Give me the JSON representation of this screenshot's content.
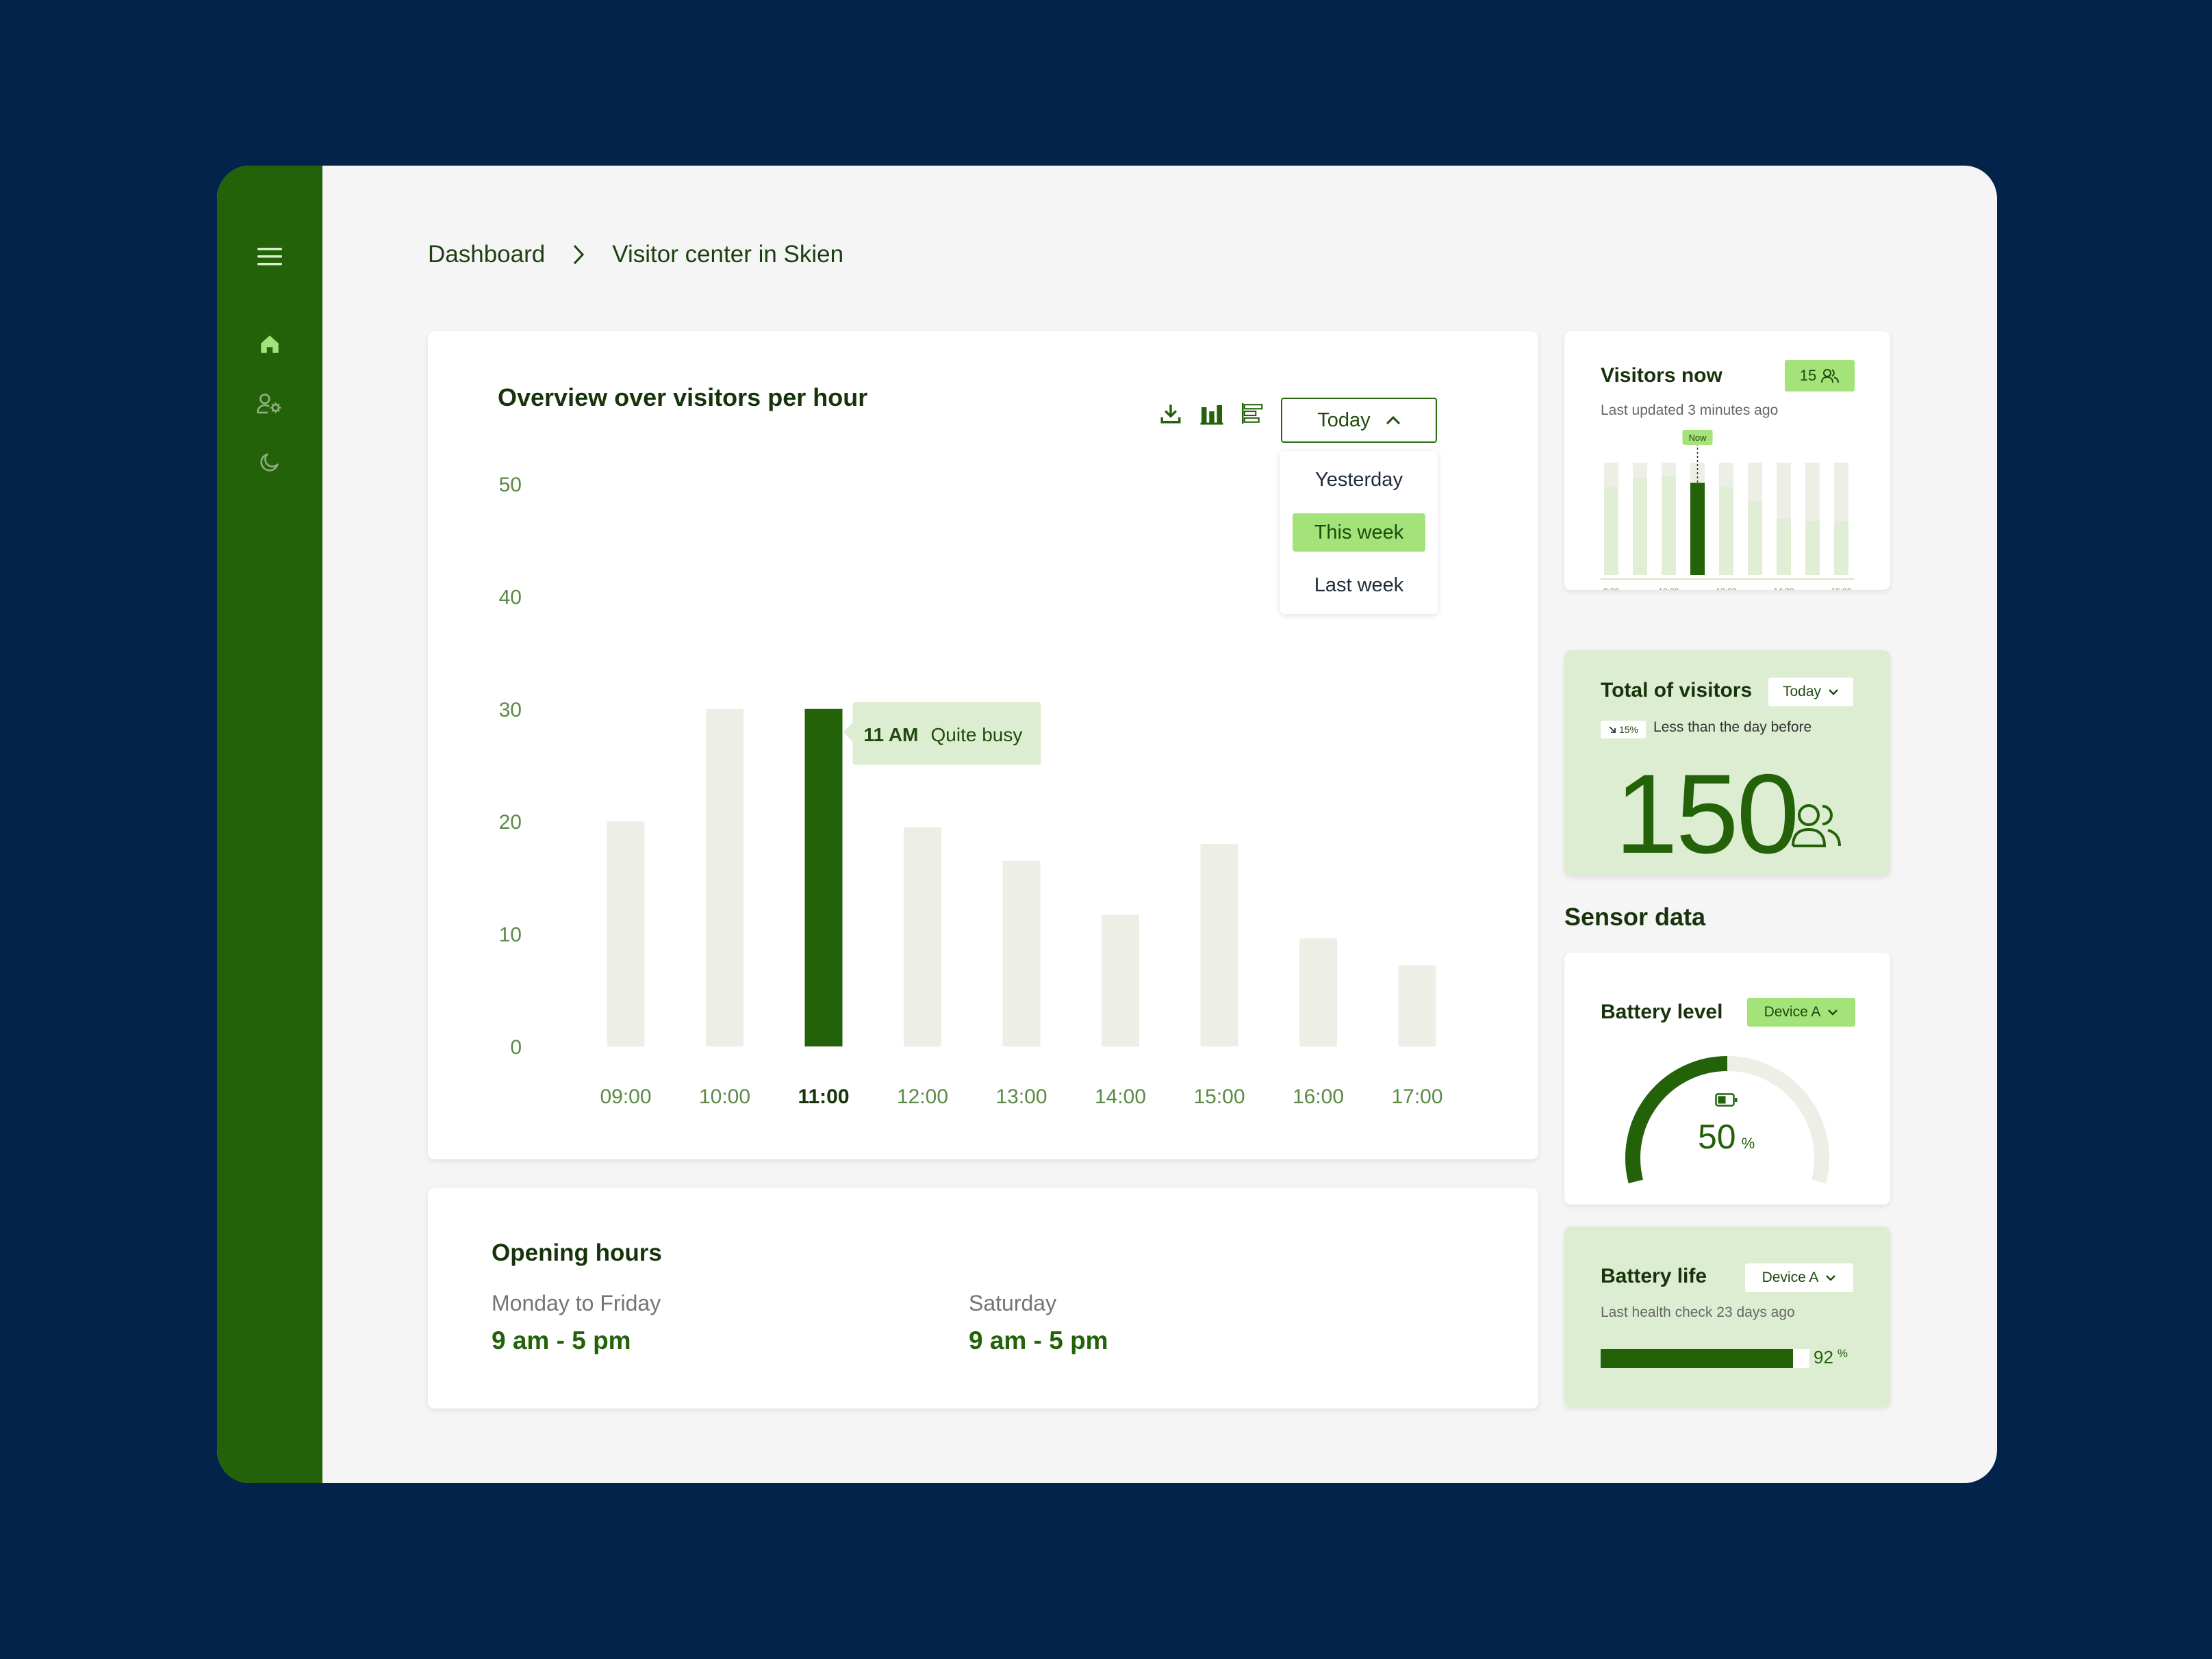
{
  "colors": {
    "accent": "#236209",
    "accent_light": "#a4e27a",
    "bar_muted": "#edefe7",
    "card_green": "#ddedd2",
    "background": "#03234a"
  },
  "sidebar": {
    "items": [
      {
        "icon": "menu-icon"
      },
      {
        "icon": "home-icon"
      },
      {
        "icon": "user-settings-icon"
      },
      {
        "icon": "moon-icon"
      }
    ]
  },
  "breadcrumb": {
    "root": "Dashboard",
    "current": "Visitor center in Skien"
  },
  "overview": {
    "title": "Overview over visitors per hour",
    "tools": [
      "download-icon",
      "bar-chart-icon",
      "horizontal-bar-icon"
    ],
    "range": {
      "selected": "Today",
      "options": [
        "Yesterday",
        "This week",
        "Last week"
      ],
      "highlighted": "This week"
    },
    "tooltip": {
      "time": "11 AM",
      "status": "Quite busy"
    }
  },
  "chart_data": {
    "type": "bar",
    "categories": [
      "09:00",
      "10:00",
      "11:00",
      "12:00",
      "13:00",
      "14:00",
      "15:00",
      "16:00",
      "17:00"
    ],
    "values": [
      20,
      30,
      30,
      19.5,
      16.5,
      11.7,
      18,
      9.6,
      7.2
    ],
    "highlighted": "11:00",
    "ylim": [
      0,
      50
    ],
    "yticks": [
      0,
      10,
      20,
      30,
      40,
      50
    ],
    "grid": false
  },
  "opening_hours": {
    "title": "Opening hours",
    "weekdays_label": "Monday to Friday",
    "weekdays_value": "9 am - 5 pm",
    "saturday_label": "Saturday",
    "saturday_value": "9 am - 5 pm"
  },
  "visitors_now": {
    "title": "Visitors now",
    "count": "15",
    "updated": "Last updated 3 minutes ago",
    "marker": "Now",
    "mini_bars": [
      {
        "fill": 0.78
      },
      {
        "fill": 0.86
      },
      {
        "fill": 0.88
      },
      {
        "fill": 0.82,
        "current": true
      },
      {
        "fill": 0.78
      },
      {
        "fill": 0.66
      },
      {
        "fill": 0.5
      },
      {
        "fill": 0.48
      },
      {
        "fill": 0.48
      }
    ],
    "x_labels": [
      "8:00",
      "10:00",
      "12:00",
      "14:00",
      "16:00"
    ]
  },
  "total_visitors": {
    "title": "Total of visitors",
    "range": "Today",
    "change": "15%",
    "change_text": "Less than the day before",
    "value": "150"
  },
  "sensor": {
    "heading": "Sensor data",
    "battery_level": {
      "title": "Battery level",
      "device": "Device A",
      "value": "50",
      "unit": "%",
      "level": 0.5
    },
    "battery_life": {
      "title": "Battery life",
      "device": "Device A",
      "subtitle": "Last health check 23 days ago",
      "value": "92",
      "unit": "%",
      "level": 0.92
    }
  }
}
